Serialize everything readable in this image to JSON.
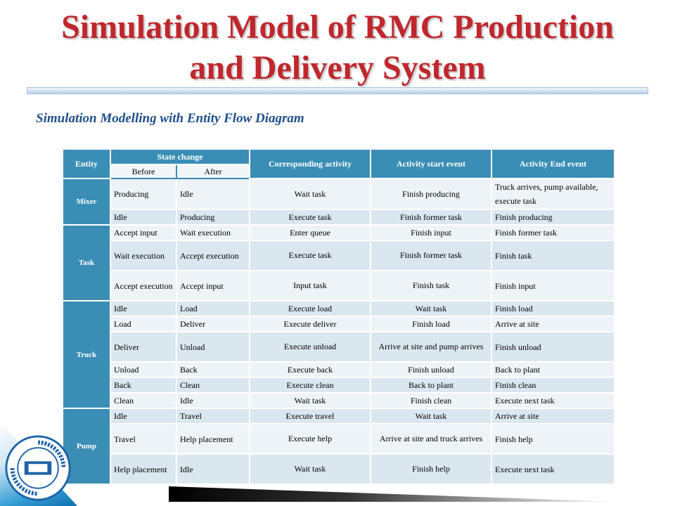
{
  "slide": {
    "title_line1": "Simulation Model of RMC Production",
    "title_line2": "and Delivery System",
    "subtitle": "Simulation Modelling with Entity Flow Diagram"
  },
  "table": {
    "headers": {
      "entity": "Entity",
      "state_change": "State change",
      "before": "Before",
      "after": "After",
      "activity": "Corresponding activity",
      "start_event": "Activity start event",
      "end_event": "Activity End event"
    },
    "groups": [
      {
        "entity": "Mixer",
        "rows": [
          {
            "before": "Producing",
            "after": "Idle",
            "activity": "Wait task",
            "start": "Finish producing",
            "end": "Truck arrives, pump available, execute task"
          },
          {
            "before": "Idle",
            "after": "Producing",
            "activity": "Execute task",
            "start": "Finish former task",
            "end": "Finish producing"
          }
        ]
      },
      {
        "entity": "Task",
        "rows": [
          {
            "before": "Accept input",
            "after": "Wait execution",
            "activity": "Enter queue",
            "start": "Finish input",
            "end": "Finish former task"
          },
          {
            "before": "Wait execution",
            "after": "Accept execution",
            "activity": "Execute task",
            "start": "Finish former task",
            "end": "Finish task"
          },
          {
            "before": "Accept execution",
            "after": "Accept input",
            "activity": "Input task",
            "start": "Finish task",
            "end": "Finish input"
          }
        ]
      },
      {
        "entity": "Truck",
        "rows": [
          {
            "before": "Idle",
            "after": "Load",
            "activity": "Execute load",
            "start": "Wait task",
            "end": "Finish load"
          },
          {
            "before": "Load",
            "after": "Deliver",
            "activity": "Execute deliver",
            "start": "Finish load",
            "end": "Arrive at site"
          },
          {
            "before": "Deliver",
            "after": "Unload",
            "activity": "Execute unload",
            "start": "Arrive at site and pump arrives",
            "end": "Finish unload"
          },
          {
            "before": "Unload",
            "after": "Back",
            "activity": "Execute back",
            "start": "Finish unload",
            "end": "Back to plant"
          },
          {
            "before": "Back",
            "after": "Clean",
            "activity": "Execute clean",
            "start": "Back to plant",
            "end": "Finish clean"
          },
          {
            "before": "Clean",
            "after": "Idle",
            "activity": "Wait task",
            "start": "Finish clean",
            "end": "Execute next task"
          }
        ]
      },
      {
        "entity": "Pump",
        "rows": [
          {
            "before": "Idle",
            "after": "Travel",
            "activity": "Execute travel",
            "start": "Wait task",
            "end": "Arrive at site"
          },
          {
            "before": "Travel",
            "after": "Help placement",
            "activity": "Execute help",
            "start": "Arrive at site and truck arrives",
            "end": "Finish help"
          },
          {
            "before": "Help placement",
            "after": "Idle",
            "activity": "Wait task",
            "start": "Finish help",
            "end": "Execute next task"
          }
        ]
      }
    ]
  },
  "colors": {
    "title": "#c0272d",
    "subtitle": "#1f4f8a",
    "header": "#3a8eb5",
    "row_dark": "#dbe7ef",
    "row_light": "#edf3f7"
  },
  "logo": {
    "icon": "university-seal-icon",
    "text": "华中科技大学 HUAZHONG UNIVERSITY OF SCIENCE AND TECHNOLOGY"
  }
}
